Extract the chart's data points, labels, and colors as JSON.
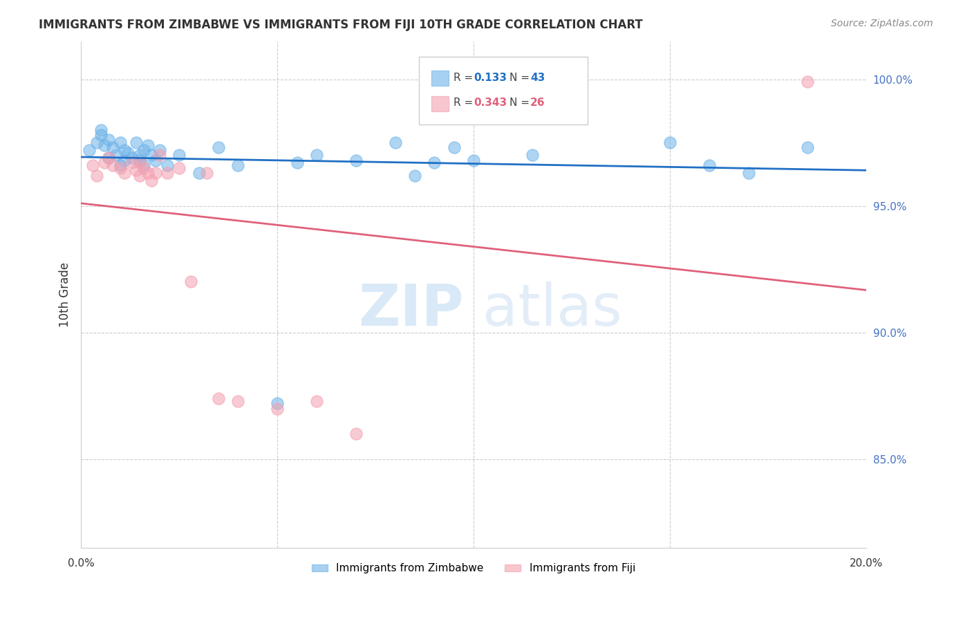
{
  "title": "IMMIGRANTS FROM ZIMBABWE VS IMMIGRANTS FROM FIJI 10TH GRADE CORRELATION CHART",
  "source": "Source: ZipAtlas.com",
  "ylabel": "10th Grade",
  "ytick_values": [
    0.85,
    0.9,
    0.95,
    1.0
  ],
  "xlim": [
    0.0,
    0.2
  ],
  "ylim": [
    0.815,
    1.015
  ],
  "legend_r1": "0.133",
  "legend_n1": "43",
  "legend_r2": "0.343",
  "legend_n2": "26",
  "zimbabwe_color": "#6EB3E8",
  "fiji_color": "#F4A0B0",
  "trendline_zimbabwe_color": "#2170C4",
  "trendline_fiji_color": "#E0607A",
  "zimbabwe_x": [
    0.002,
    0.004,
    0.005,
    0.005,
    0.006,
    0.007,
    0.007,
    0.008,
    0.009,
    0.01,
    0.01,
    0.011,
    0.011,
    0.012,
    0.013,
    0.014,
    0.015,
    0.015,
    0.016,
    0.016,
    0.017,
    0.018,
    0.019,
    0.02,
    0.022,
    0.025,
    0.03,
    0.035,
    0.04,
    0.05,
    0.055,
    0.06,
    0.07,
    0.08,
    0.085,
    0.09,
    0.095,
    0.1,
    0.115,
    0.15,
    0.16,
    0.17,
    0.185
  ],
  "zimbabwe_y": [
    0.972,
    0.975,
    0.978,
    0.98,
    0.974,
    0.976,
    0.969,
    0.973,
    0.97,
    0.975,
    0.966,
    0.972,
    0.968,
    0.971,
    0.969,
    0.975,
    0.97,
    0.968,
    0.972,
    0.966,
    0.974,
    0.97,
    0.968,
    0.972,
    0.966,
    0.97,
    0.963,
    0.973,
    0.966,
    0.872,
    0.967,
    0.97,
    0.968,
    0.975,
    0.962,
    0.967,
    0.973,
    0.968,
    0.97,
    0.975,
    0.966,
    0.963,
    0.973
  ],
  "fiji_x": [
    0.003,
    0.004,
    0.006,
    0.007,
    0.008,
    0.01,
    0.011,
    0.013,
    0.014,
    0.015,
    0.015,
    0.016,
    0.017,
    0.018,
    0.019,
    0.02,
    0.022,
    0.025,
    0.028,
    0.032,
    0.035,
    0.04,
    0.05,
    0.06,
    0.07,
    0.185
  ],
  "fiji_y": [
    0.966,
    0.962,
    0.967,
    0.969,
    0.966,
    0.965,
    0.963,
    0.967,
    0.964,
    0.962,
    0.967,
    0.965,
    0.963,
    0.96,
    0.963,
    0.97,
    0.963,
    0.965,
    0.92,
    0.963,
    0.874,
    0.873,
    0.87,
    0.873,
    0.86,
    0.999
  ]
}
